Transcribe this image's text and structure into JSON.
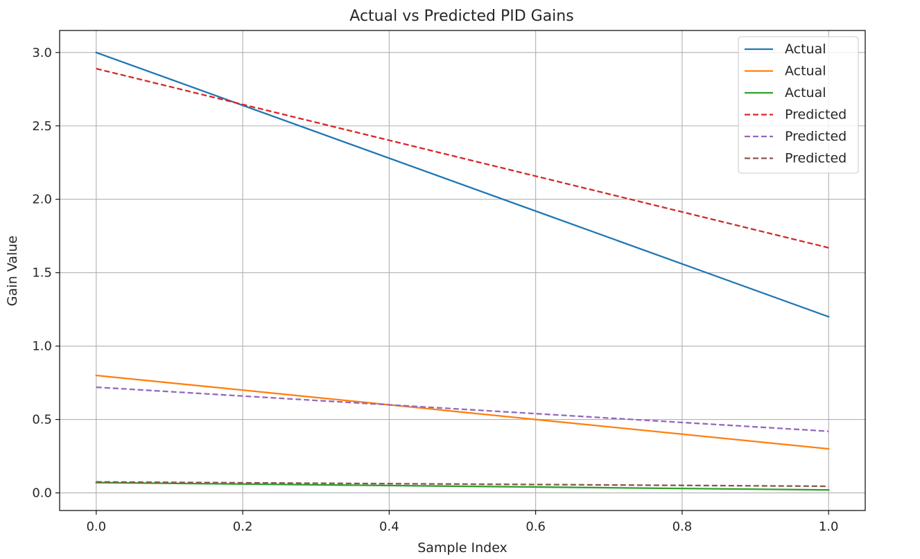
{
  "chart_data": {
    "type": "line",
    "title": "Actual vs Predicted PID Gains",
    "xlabel": "Sample Index",
    "ylabel": "Gain Value",
    "xlim": [
      -0.05,
      1.05
    ],
    "ylim": [
      -0.12,
      3.15
    ],
    "xticks": [
      0.0,
      0.2,
      0.4,
      0.6,
      0.8,
      1.0
    ],
    "xtick_labels": [
      "0.0",
      "0.2",
      "0.4",
      "0.6",
      "0.8",
      "1.0"
    ],
    "yticks": [
      0.0,
      0.5,
      1.0,
      1.5,
      2.0,
      2.5,
      3.0
    ],
    "ytick_labels": [
      "0.0",
      "0.5",
      "1.0",
      "1.5",
      "2.0",
      "2.5",
      "3.0"
    ],
    "grid": true,
    "legend_position": "top-right",
    "x": [
      0.0,
      1.0
    ],
    "series": [
      {
        "name": "Actual",
        "color": "#1f77b4",
        "style": "solid",
        "values": [
          3.0,
          1.2
        ]
      },
      {
        "name": "Actual",
        "color": "#ff7f0e",
        "style": "solid",
        "values": [
          0.8,
          0.3
        ]
      },
      {
        "name": "Actual",
        "color": "#2ca02c",
        "style": "solid",
        "values": [
          0.07,
          0.02
        ]
      },
      {
        "name": "Predicted",
        "color": "#d62728",
        "style": "dashed",
        "values": [
          2.89,
          1.67
        ]
      },
      {
        "name": "Predicted",
        "color": "#9467bd",
        "style": "dashed",
        "values": [
          0.72,
          0.42
        ]
      },
      {
        "name": "Predicted",
        "color": "#8c564b",
        "style": "dashed",
        "values": [
          0.075,
          0.045
        ]
      }
    ]
  }
}
